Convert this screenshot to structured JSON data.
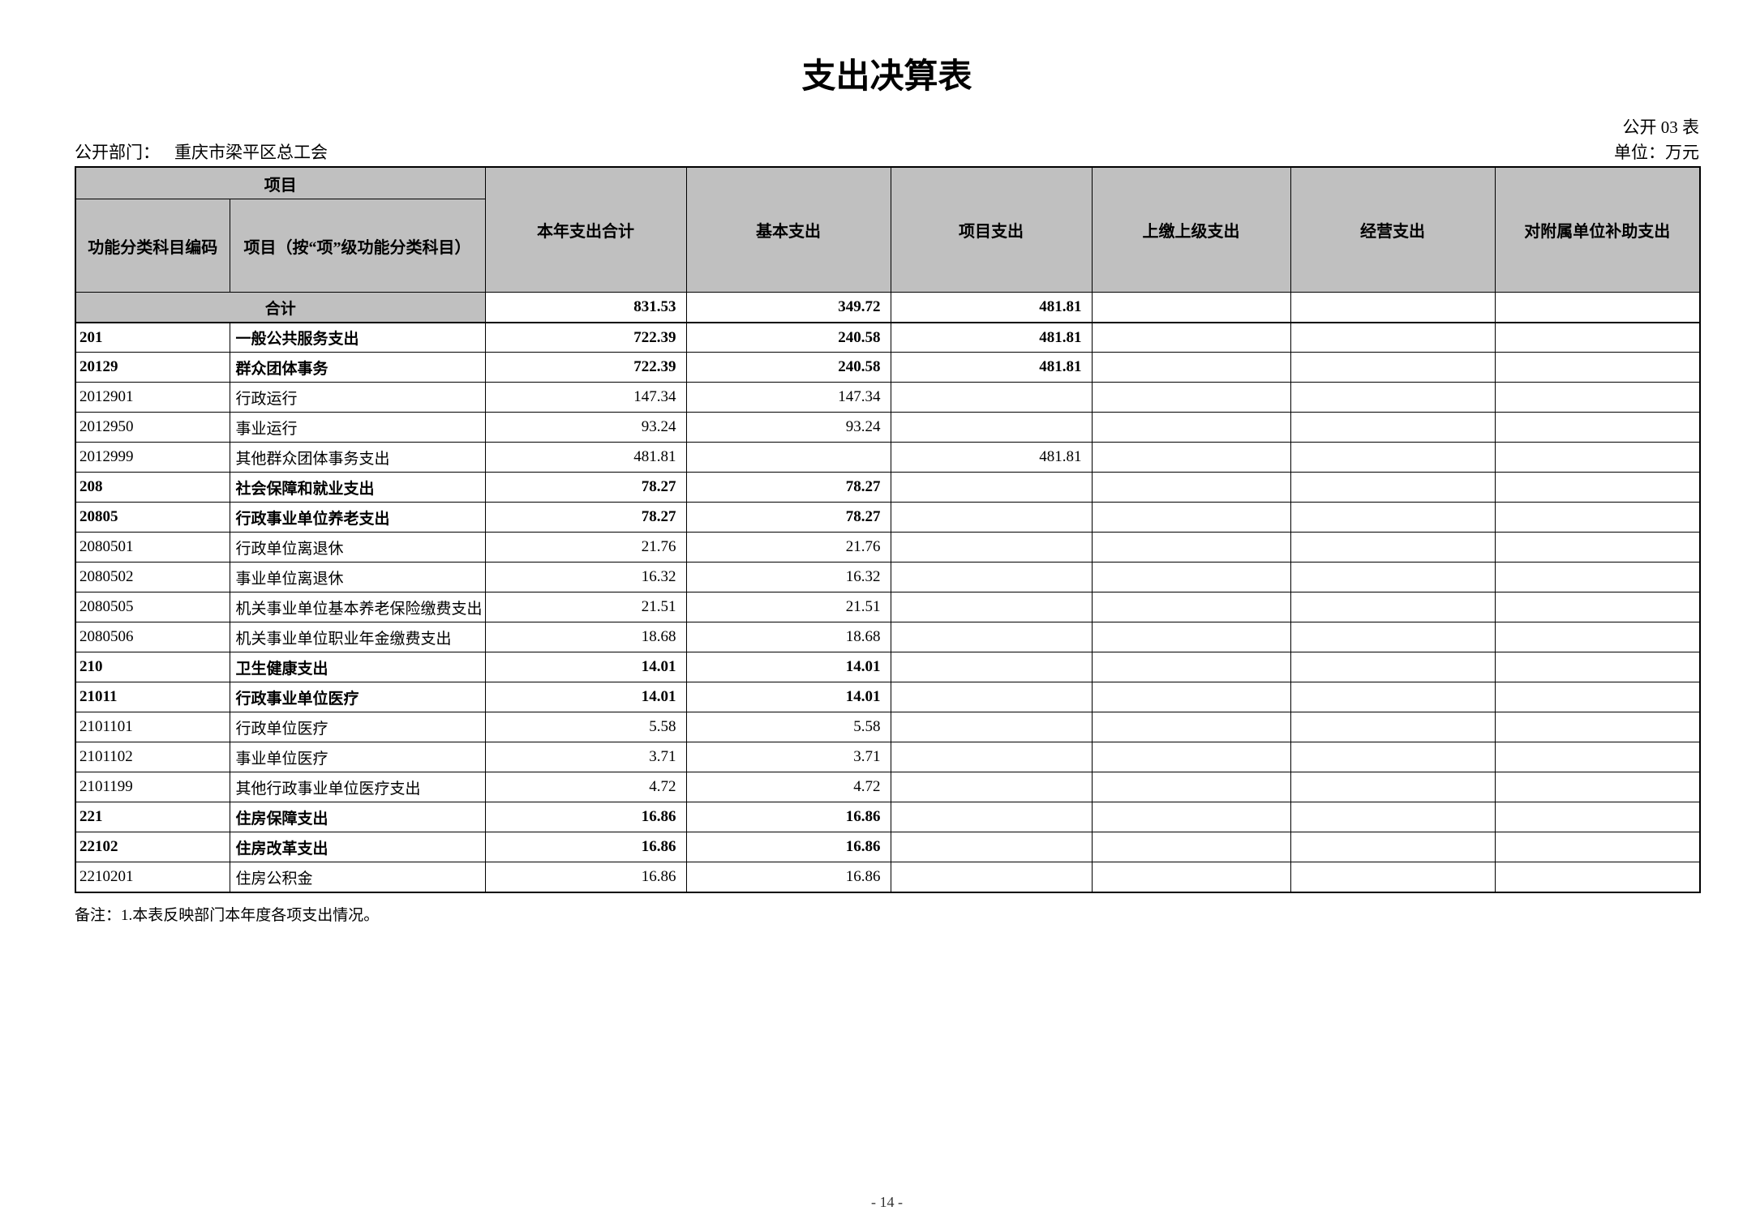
{
  "page": {
    "title": "支出决算表",
    "table_code": "公开 03 表",
    "department_label": "公开部门：",
    "department_value": "重庆市梁平区总工会",
    "unit_label": "单位：万元",
    "note": "备注：1.本表反映部门本年度各项支出情况。",
    "page_number": "- 14 -"
  },
  "colors": {
    "header_gray": "#c0c0c0",
    "border": "#000000"
  },
  "table": {
    "header": {
      "group_label": "项目",
      "col_code": "功能分类科目编码",
      "col_item": "项目（按“项”级功能分类科目）",
      "col_total": "本年支出合计",
      "col_basic": "基本支出",
      "col_project": "项目支出",
      "col_upper": "上缴上级支出",
      "col_operating": "经营支出",
      "col_subsidy": "对附属单位补助支出"
    },
    "rows": [
      {
        "summary": true,
        "label": "合计",
        "total": "831.53",
        "basic": "349.72",
        "project": "481.81",
        "upper": "",
        "operating": "",
        "subsidy": "",
        "bold": true
      },
      {
        "code": "201",
        "name": "一般公共服务支出",
        "total": "722.39",
        "basic": "240.58",
        "project": "481.81",
        "upper": "",
        "operating": "",
        "subsidy": "",
        "bold": true
      },
      {
        "code": "20129",
        "name": "群众团体事务",
        "total": "722.39",
        "basic": "240.58",
        "project": "481.81",
        "upper": "",
        "operating": "",
        "subsidy": "",
        "bold": true
      },
      {
        "code": "2012901",
        "name": "行政运行",
        "total": "147.34",
        "basic": "147.34",
        "project": "",
        "upper": "",
        "operating": "",
        "subsidy": "",
        "bold": false
      },
      {
        "code": "2012950",
        "name": "事业运行",
        "total": "93.24",
        "basic": "93.24",
        "project": "",
        "upper": "",
        "operating": "",
        "subsidy": "",
        "bold": false
      },
      {
        "code": "2012999",
        "name": "其他群众团体事务支出",
        "total": "481.81",
        "basic": "",
        "project": "481.81",
        "upper": "",
        "operating": "",
        "subsidy": "",
        "bold": false
      },
      {
        "code": "208",
        "name": "社会保障和就业支出",
        "total": "78.27",
        "basic": "78.27",
        "project": "",
        "upper": "",
        "operating": "",
        "subsidy": "",
        "bold": true
      },
      {
        "code": "20805",
        "name": "行政事业单位养老支出",
        "total": "78.27",
        "basic": "78.27",
        "project": "",
        "upper": "",
        "operating": "",
        "subsidy": "",
        "bold": true
      },
      {
        "code": "2080501",
        "name": "行政单位离退休",
        "total": "21.76",
        "basic": "21.76",
        "project": "",
        "upper": "",
        "operating": "",
        "subsidy": "",
        "bold": false
      },
      {
        "code": "2080502",
        "name": "事业单位离退休",
        "total": "16.32",
        "basic": "16.32",
        "project": "",
        "upper": "",
        "operating": "",
        "subsidy": "",
        "bold": false
      },
      {
        "code": "2080505",
        "name": "机关事业单位基本养老保险缴费支出",
        "total": "21.51",
        "basic": "21.51",
        "project": "",
        "upper": "",
        "operating": "",
        "subsidy": "",
        "bold": false
      },
      {
        "code": "2080506",
        "name": "机关事业单位职业年金缴费支出",
        "total": "18.68",
        "basic": "18.68",
        "project": "",
        "upper": "",
        "operating": "",
        "subsidy": "",
        "bold": false
      },
      {
        "code": "210",
        "name": "卫生健康支出",
        "total": "14.01",
        "basic": "14.01",
        "project": "",
        "upper": "",
        "operating": "",
        "subsidy": "",
        "bold": true
      },
      {
        "code": "21011",
        "name": "行政事业单位医疗",
        "total": "14.01",
        "basic": "14.01",
        "project": "",
        "upper": "",
        "operating": "",
        "subsidy": "",
        "bold": true
      },
      {
        "code": "2101101",
        "name": "行政单位医疗",
        "total": "5.58",
        "basic": "5.58",
        "project": "",
        "upper": "",
        "operating": "",
        "subsidy": "",
        "bold": false
      },
      {
        "code": "2101102",
        "name": "事业单位医疗",
        "total": "3.71",
        "basic": "3.71",
        "project": "",
        "upper": "",
        "operating": "",
        "subsidy": "",
        "bold": false
      },
      {
        "code": "2101199",
        "name": "其他行政事业单位医疗支出",
        "total": "4.72",
        "basic": "4.72",
        "project": "",
        "upper": "",
        "operating": "",
        "subsidy": "",
        "bold": false
      },
      {
        "code": "221",
        "name": "住房保障支出",
        "total": "16.86",
        "basic": "16.86",
        "project": "",
        "upper": "",
        "operating": "",
        "subsidy": "",
        "bold": true
      },
      {
        "code": "22102",
        "name": "住房改革支出",
        "total": "16.86",
        "basic": "16.86",
        "project": "",
        "upper": "",
        "operating": "",
        "subsidy": "",
        "bold": true
      },
      {
        "code": "2210201",
        "name": "住房公积金",
        "total": "16.86",
        "basic": "16.86",
        "project": "",
        "upper": "",
        "operating": "",
        "subsidy": "",
        "bold": false
      }
    ]
  }
}
